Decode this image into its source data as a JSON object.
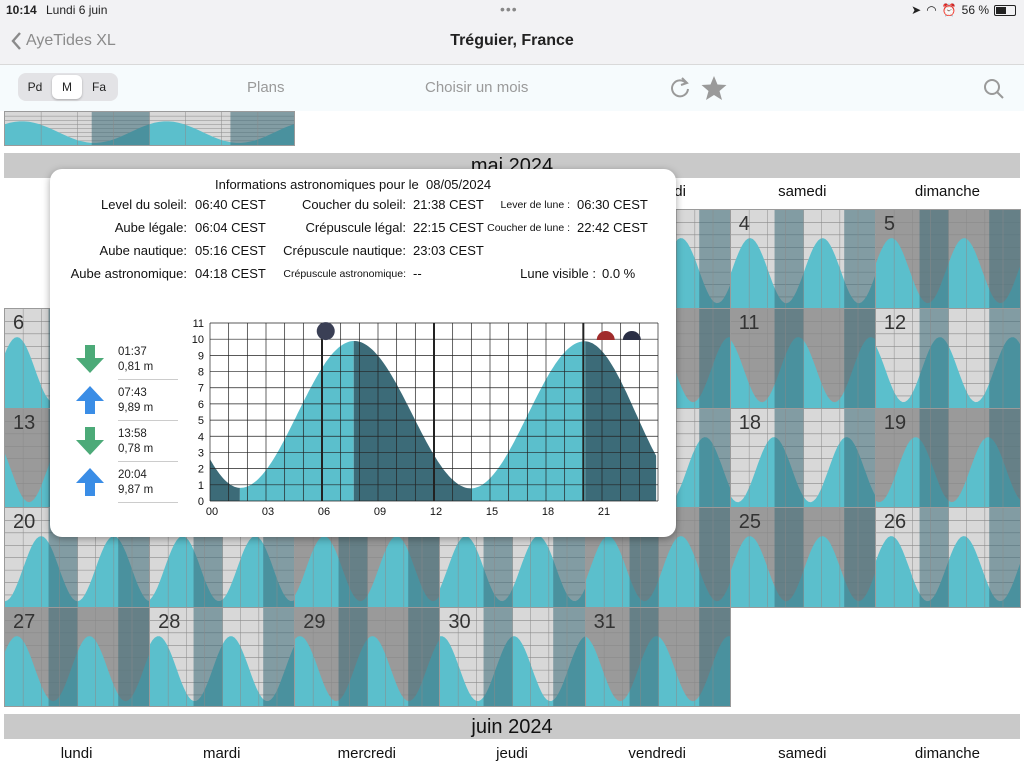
{
  "status_bar": {
    "time": "10:14",
    "date": "Lundi 6 juin",
    "battery_text": "56 %",
    "battery_level": 0.56
  },
  "nav": {
    "back_label": "AyeTides XL",
    "title": "Tréguier, France"
  },
  "toolbar": {
    "segments": [
      "Pd",
      "M",
      "Fa"
    ],
    "selected_segment": "M",
    "plans": "Plans",
    "month_picker": "Choisir un mois"
  },
  "months": {
    "current": "mai 2024",
    "next": "juin 2024"
  },
  "weekdays": [
    "lundi",
    "mardi",
    "mercredi",
    "jeudi",
    "vendredi",
    "samedi",
    "dimanche"
  ],
  "calendar_days": [
    {
      "day": "4",
      "shade": "light"
    },
    {
      "day": "5",
      "shade": "dark"
    },
    {
      "day": "6",
      "shade": "light"
    },
    {
      "day": "11",
      "shade": "dark"
    },
    {
      "day": "12",
      "shade": "light"
    },
    {
      "day": "13",
      "shade": "dark"
    },
    {
      "day": "18",
      "shade": "light"
    },
    {
      "day": "19",
      "shade": "dark"
    },
    {
      "day": "20",
      "shade": "light"
    },
    {
      "day": "25",
      "shade": "dark"
    },
    {
      "day": "26",
      "shade": "light"
    },
    {
      "day": "27",
      "shade": "dark"
    },
    {
      "day": "28",
      "shade": "light"
    },
    {
      "day": "29",
      "shade": "dark"
    },
    {
      "day": "30",
      "shade": "light"
    },
    {
      "day": "31",
      "shade": "dark"
    }
  ],
  "popup": {
    "title": "Informations astronomiques pour le",
    "date": "08/05/2024",
    "sunrise_label": "Level du soleil:",
    "sunrise": "06:40 CEST",
    "sunset_label": "Coucher du soleil:",
    "sunset": "21:38 CEST",
    "moonrise_label": "Lever de lune :",
    "moonrise": "06:30 CEST",
    "civil_dawn_label": "Aube légale:",
    "civil_dawn": "06:04 CEST",
    "civil_dusk_label": "Crépuscule légal:",
    "civil_dusk": "22:15 CEST",
    "moonset_label": "Coucher de lune :",
    "moonset": "22:42 CEST",
    "nautical_dawn_label": "Aube nautique:",
    "nautical_dawn": "05:16 CEST",
    "nautical_dusk_label": "Crépuscule nautique:",
    "nautical_dusk": "23:03 CEST",
    "astro_dawn_label": "Aube astronomique:",
    "astro_dawn": "04:18 CEST",
    "astro_dusk_label": "Crépuscule astronomique:",
    "astro_dusk": "--",
    "moon_visible_label": "Lune visible :",
    "moon_visible": "0.0 %",
    "tides": [
      {
        "direction": "down",
        "time": "01:37",
        "height": "0,81 m"
      },
      {
        "direction": "up",
        "time": "07:43",
        "height": "9,89 m"
      },
      {
        "direction": "down",
        "time": "13:58",
        "height": "0,78 m"
      },
      {
        "direction": "up",
        "time": "20:04",
        "height": "9,87 m"
      }
    ]
  },
  "colors": {
    "water_light": "#5bbfcc",
    "water_dark": "#3c6b78",
    "cell_dark": "#9a9a9a",
    "cell_light": "#d8d8d8",
    "arrow_down": "#4caa78",
    "arrow_up": "#3a8de6"
  },
  "chart_data": {
    "type": "area",
    "x_ticks": [
      "00",
      "03",
      "06",
      "09",
      "12",
      "15",
      "18",
      "21"
    ],
    "y_ticks": [
      "0",
      "1",
      "2",
      "3",
      "4",
      "5",
      "6",
      "7",
      "8",
      "9",
      "10",
      "11"
    ],
    "xlim": [
      0,
      24
    ],
    "ylim": [
      0,
      11
    ],
    "x": [
      1.62,
      7.72,
      13.97,
      20.07
    ],
    "y": [
      0.81,
      9.89,
      0.78,
      9.87
    ],
    "grid": true,
    "shading": {
      "light_from": 1.62,
      "light_to": 7.72,
      "light2_from": 13.97,
      "light2_to": 20.07
    }
  }
}
